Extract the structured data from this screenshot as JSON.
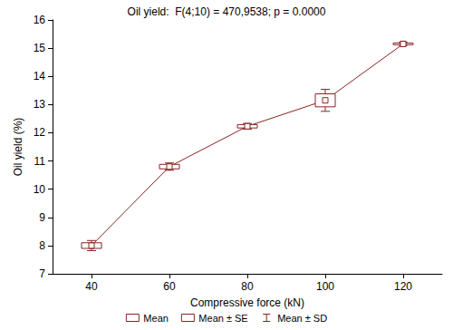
{
  "chart_data": {
    "type": "line",
    "title": "Oil yield:  F(4;10) = 470,9538; p = 0.0000",
    "x_label": "Compressive force (kN)",
    "y_label": "Oil yield (%)",
    "categories": [
      "40",
      "60",
      "80",
      "100",
      "120"
    ],
    "series": [
      {
        "name": "Mean",
        "color": "#8b2323",
        "marker": "square",
        "values": [
          8.0,
          10.8,
          12.23,
          13.15,
          15.15
        ]
      }
    ],
    "box": {
      "name": "Mean ± SE",
      "values": [
        0.1,
        0.08,
        0.06,
        0.23,
        0.03
      ]
    },
    "whisker": {
      "name": "Mean ± SD",
      "values": [
        0.18,
        0.13,
        0.1,
        0.39,
        0.05
      ]
    },
    "ylim": [
      7,
      16
    ],
    "yticks": [
      7,
      8,
      9,
      10,
      11,
      12,
      13,
      14,
      15,
      16
    ],
    "grid": false,
    "legend": "bottom"
  }
}
